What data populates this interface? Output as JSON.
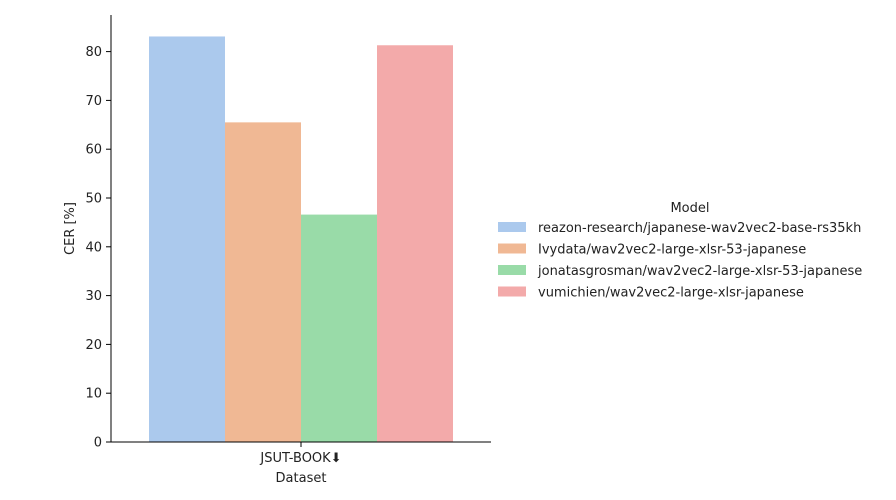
{
  "chart_data": {
    "type": "bar",
    "categories": [
      "JSUT-BOOK⬇"
    ],
    "xlabel": "Dataset",
    "ylabel": "CER [%]",
    "ylim": [
      0,
      87.5
    ],
    "yticks": [
      0,
      10,
      20,
      30,
      40,
      50,
      60,
      70,
      80
    ],
    "grid": false,
    "legend": {
      "title": "Model",
      "placement": "right"
    },
    "series": [
      {
        "name": "reazon-research/japanese-wav2vec2-base-rs35kh",
        "values": [
          83.1
        ],
        "color": "#abc9ed"
      },
      {
        "name": "Ivydata/wav2vec2-large-xlsr-53-japanese",
        "values": [
          65.5
        ],
        "color": "#f0b894"
      },
      {
        "name": "jonatasgrosman/wav2vec2-large-xlsr-53-japanese",
        "values": [
          46.6
        ],
        "color": "#99dba8"
      },
      {
        "name": "vumichien/wav2vec2-large-xlsr-japanese",
        "values": [
          81.3
        ],
        "color": "#f3aaaa"
      }
    ]
  }
}
